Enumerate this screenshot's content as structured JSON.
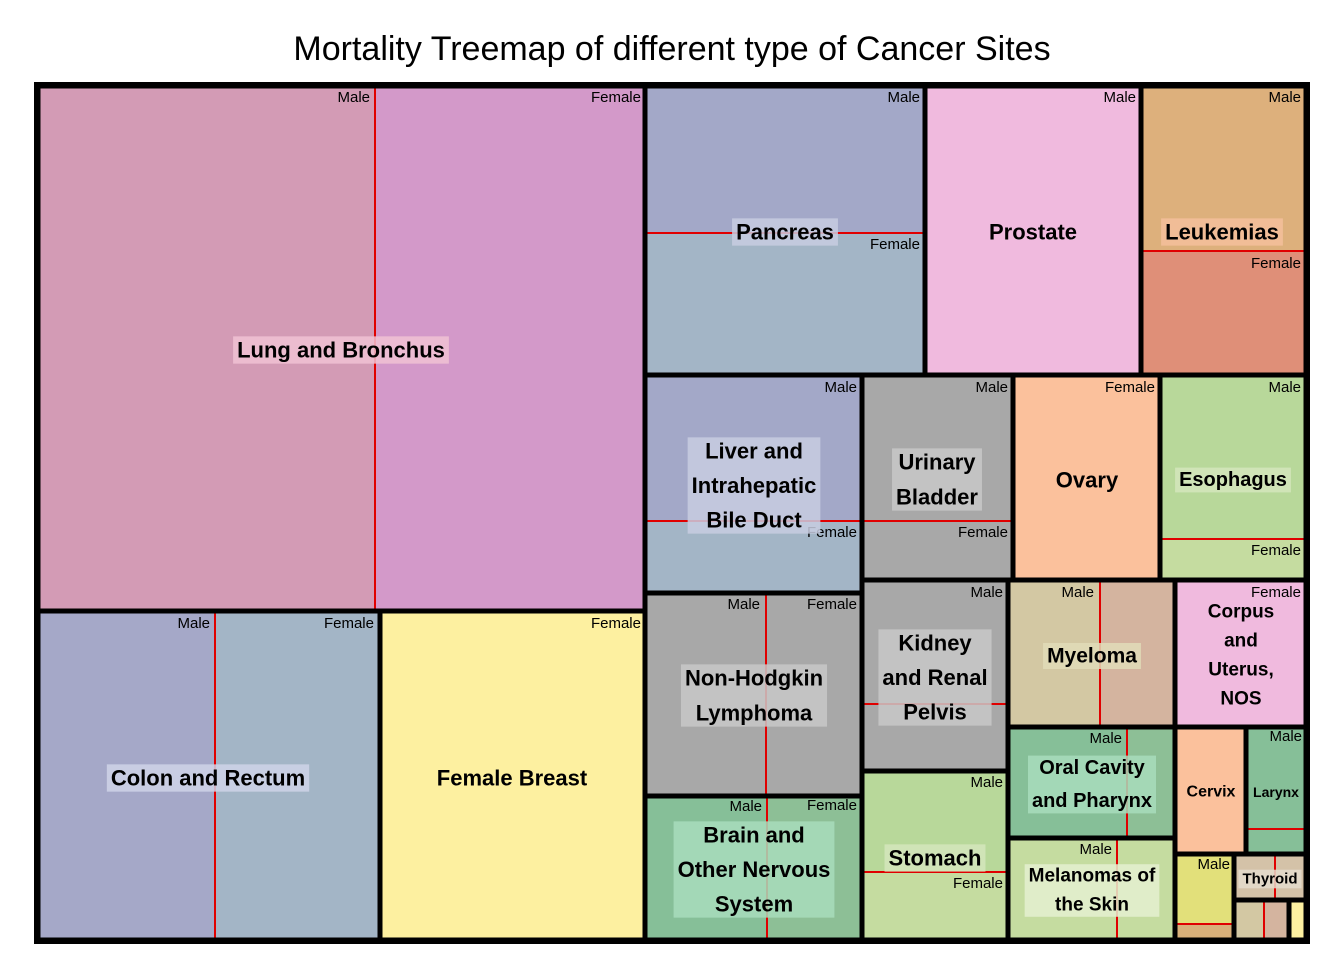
{
  "chart_data": {
    "type": "treemap",
    "title": "Mortality Treemap of different type of Cancer Sites",
    "sub_labels": {
      "male": "Male",
      "female": "Female"
    },
    "sites": [
      {
        "name": "Lung and Bronchus",
        "male": 1,
        "female": 1,
        "colors": {
          "male": "#d39bb5",
          "female": "#d399c9"
        }
      },
      {
        "name": "Colon and Rectum",
        "male": 1,
        "female": 1,
        "colors": {
          "male": "#a5a8c8",
          "female": "#a3b5c6"
        }
      },
      {
        "name": "Female Breast",
        "female": 1,
        "colors": {
          "female": "#fdf0a0"
        }
      },
      {
        "name": "Pancreas",
        "male": 1,
        "female": 1,
        "colors": {
          "male": "#a3a8c8",
          "female": "#a3b5c6"
        }
      },
      {
        "name": "Prostate",
        "male": 1,
        "colors": {
          "male": "#f0bade"
        }
      },
      {
        "name": "Leukemias",
        "male": 1,
        "female": 1,
        "colors": {
          "male": "#ddb07c",
          "female": "#df8f78"
        }
      },
      {
        "name": "Liver and Intrahepatic Bile Duct",
        "male": 1,
        "female": 1,
        "colors": {
          "male": "#a3a8c8",
          "female": "#a3b5c6"
        }
      },
      {
        "name": "Urinary Bladder",
        "male": 1,
        "female": 1,
        "colors": {
          "male": "#a8a8a8",
          "female": "#a8a8a8"
        }
      },
      {
        "name": "Ovary",
        "female": 1,
        "colors": {
          "female": "#fbc19c"
        }
      },
      {
        "name": "Esophagus",
        "male": 1,
        "female": 1,
        "colors": {
          "male": "#b8d89a",
          "female": "#c5dca0"
        }
      },
      {
        "name": "Non-Hodgkin Lymphoma",
        "male": 1,
        "female": 1,
        "colors": {
          "male": "#a8a8a8",
          "female": "#a8a8a8"
        }
      },
      {
        "name": "Kidney and Renal Pelvis",
        "male": 1,
        "female": 1,
        "colors": {
          "male": "#a8a8a8",
          "female": "#a8a8a8"
        }
      },
      {
        "name": "Myeloma",
        "male": 1,
        "female": 1,
        "colors": {
          "male": "#d3c8a3",
          "female": "#d4b49f"
        }
      },
      {
        "name": "Corpus and Uterus, NOS",
        "female": 1,
        "colors": {
          "female": "#f0bade"
        }
      },
      {
        "name": "Brain and Other Nervous System",
        "male": 1,
        "female": 1,
        "colors": {
          "male": "#86bf98",
          "female": "#8dbf96"
        }
      },
      {
        "name": "Stomach",
        "male": 1,
        "female": 1,
        "colors": {
          "male": "#b8d89a",
          "female": "#c5dca0"
        }
      },
      {
        "name": "Oral Cavity and Pharynx",
        "male": 1,
        "female": 1,
        "colors": {
          "male": "#86bf98",
          "female": "#8dbf96"
        }
      },
      {
        "name": "Melanomas of the Skin",
        "male": 1,
        "female": 1,
        "colors": {
          "male": "#c5dca0",
          "female": "#c5dca0"
        }
      },
      {
        "name": "Cervix",
        "female": 1,
        "colors": {
          "female": "#fbc19c"
        }
      },
      {
        "name": "Larynx",
        "male": 1,
        "female": 1,
        "colors": {
          "male": "#86bf98",
          "female": "#86bf98"
        }
      },
      {
        "name": "Thyroid",
        "male": 1,
        "female": 1,
        "colors": {
          "male": "#d4c2a8",
          "female": "#d4c2a8"
        }
      },
      {
        "name": "",
        "male": 1,
        "female": 1,
        "colors": {
          "male": "#e2e07a",
          "female": "#d8b07a"
        }
      },
      {
        "name": "",
        "male": 1,
        "female": 1,
        "colors": {
          "male": "#d3c8a3",
          "female": "#d4b49f"
        }
      },
      {
        "name": "",
        "female": 1,
        "colors": {
          "female": "#fdf0a0"
        }
      }
    ],
    "colors": {
      "border": "#000000",
      "divider": "#e00000"
    }
  }
}
